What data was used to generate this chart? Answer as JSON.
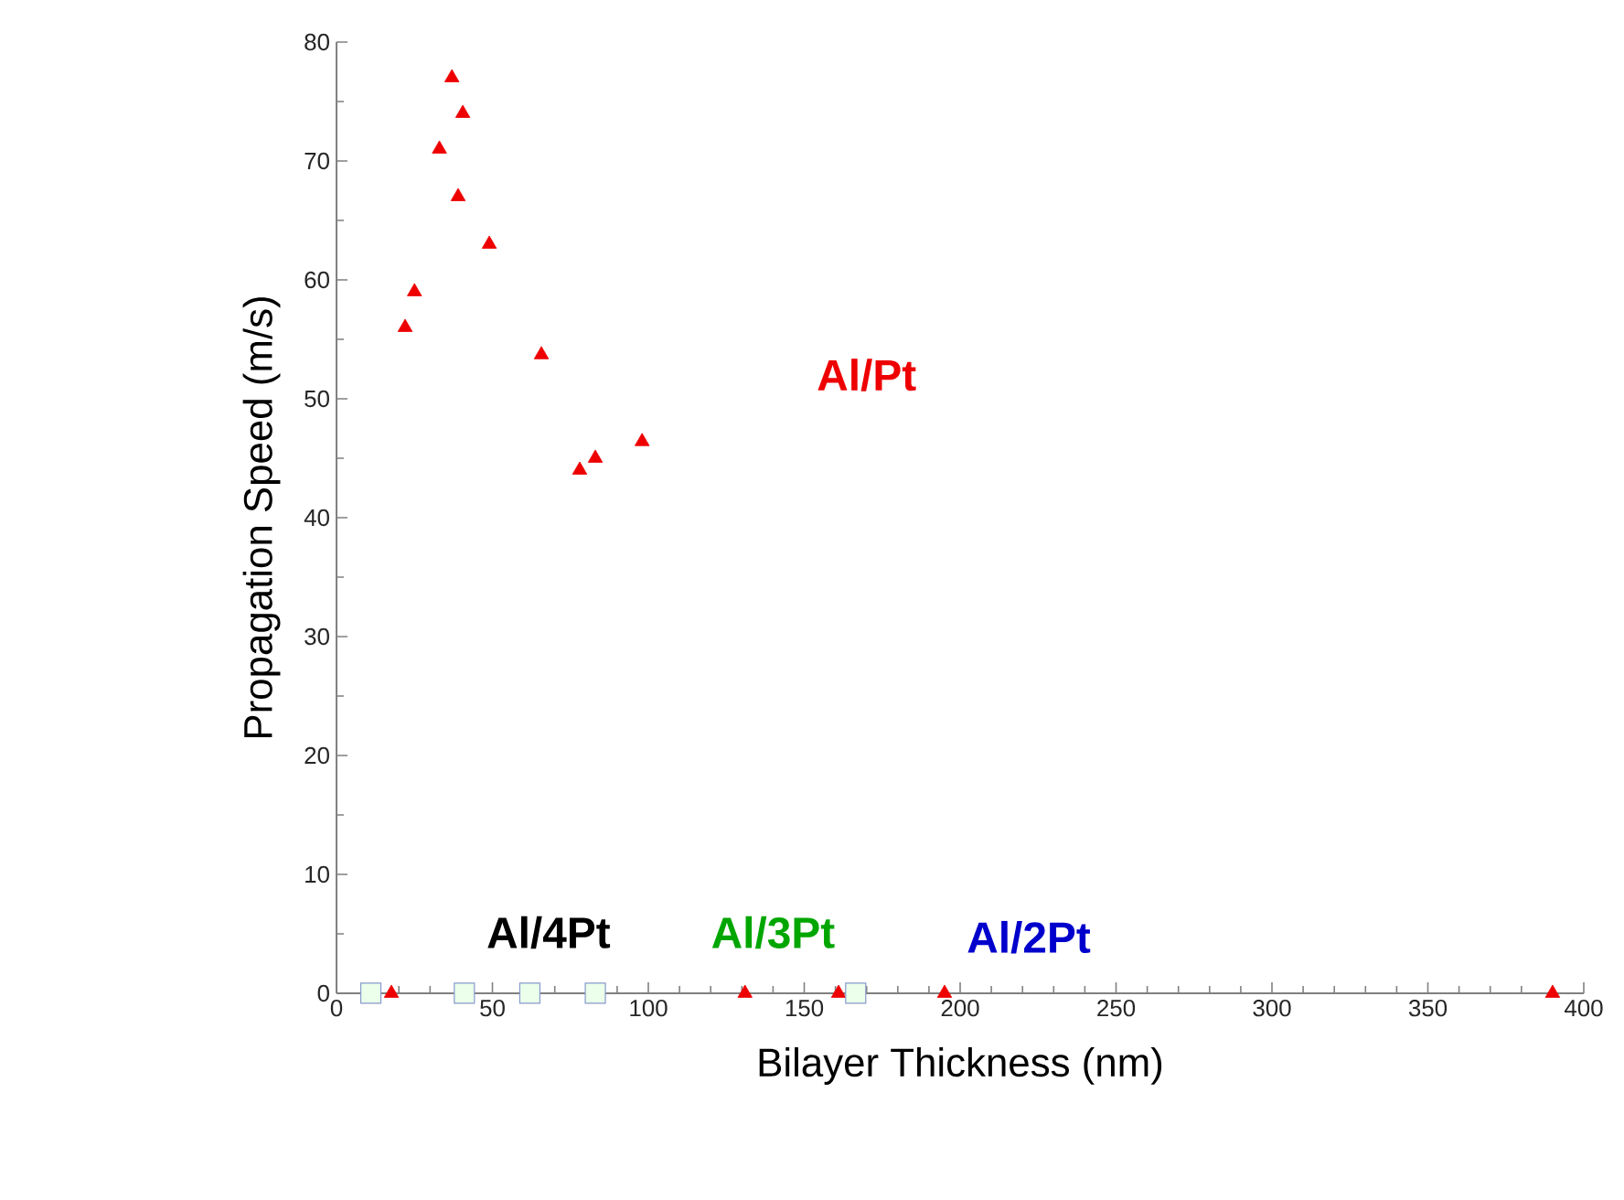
{
  "chart_data": {
    "type": "scatter",
    "xlabel": "Bilayer Thickness (nm)",
    "ylabel": "Propagation Speed (m/s)",
    "xlim": [
      0,
      400
    ],
    "xticks": [
      0,
      50,
      100,
      150,
      200,
      250,
      300,
      350,
      400
    ],
    "ylim": [
      0,
      80
    ],
    "yticks": [
      0,
      10,
      20,
      30,
      40,
      50,
      60,
      70,
      80
    ],
    "series": [
      {
        "name": "Al/Pt",
        "color": "#ee0000",
        "marker": "triangle",
        "x": [
          37,
          40.5,
          33,
          39,
          49,
          25,
          22,
          65.7,
          78,
          83,
          98,
          17.6,
          131,
          161,
          195,
          390
        ],
        "values": [
          77,
          74,
          71,
          67,
          63,
          59,
          56,
          53.7,
          44,
          45,
          46.4,
          0,
          0,
          0,
          0,
          0
        ]
      },
      {
        "color": "#8899cc",
        "marker": "square",
        "x": [
          11,
          41,
          62,
          83,
          166.5
        ],
        "values": [
          0,
          0,
          0,
          0,
          0
        ]
      }
    ],
    "annotations": [
      "Al/4Pt",
      "Al/3Pt",
      "Al/2Pt"
    ]
  }
}
